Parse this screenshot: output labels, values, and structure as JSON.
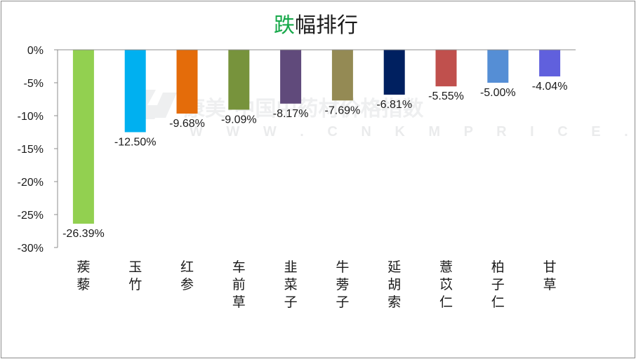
{
  "chart_data": {
    "type": "bar",
    "title": {
      "accent": "跌",
      "rest": "幅排行"
    },
    "watermark": {
      "text": "康美·中国中药材价格指数",
      "url": "W W W . C N K M P R I C E . C O M"
    },
    "categories": [
      "蒺藜",
      "玉竹",
      "红参",
      "车前草",
      "韭菜子",
      "牛蒡子",
      "延胡索",
      "薏苡仁",
      "柏子仁",
      "甘草"
    ],
    "values": [
      -26.39,
      -12.5,
      -9.68,
      -9.09,
      -8.17,
      -7.69,
      -6.81,
      -5.55,
      -5.0,
      -4.04
    ],
    "data_labels": [
      "-26.39%",
      "-12.50%",
      "-9.68%",
      "-9.09%",
      "-8.17%",
      "-7.69%",
      "-6.81%",
      "-5.55%",
      "-5.00%",
      "-4.04%"
    ],
    "colors": [
      "#92d050",
      "#00b0f0",
      "#e46c0a",
      "#77933c",
      "#604a7b",
      "#948a54",
      "#002060",
      "#c0504d",
      "#558ed5",
      "#6060dd"
    ],
    "ylim": [
      -30,
      0
    ],
    "yticks": [
      0,
      -5,
      -10,
      -15,
      -20,
      -25,
      -30
    ],
    "ytick_labels": [
      "0%",
      "-5%",
      "-10%",
      "-15%",
      "-20%",
      "-25%",
      "-30%"
    ],
    "grid": false,
    "xlabel": "",
    "ylabel": ""
  }
}
